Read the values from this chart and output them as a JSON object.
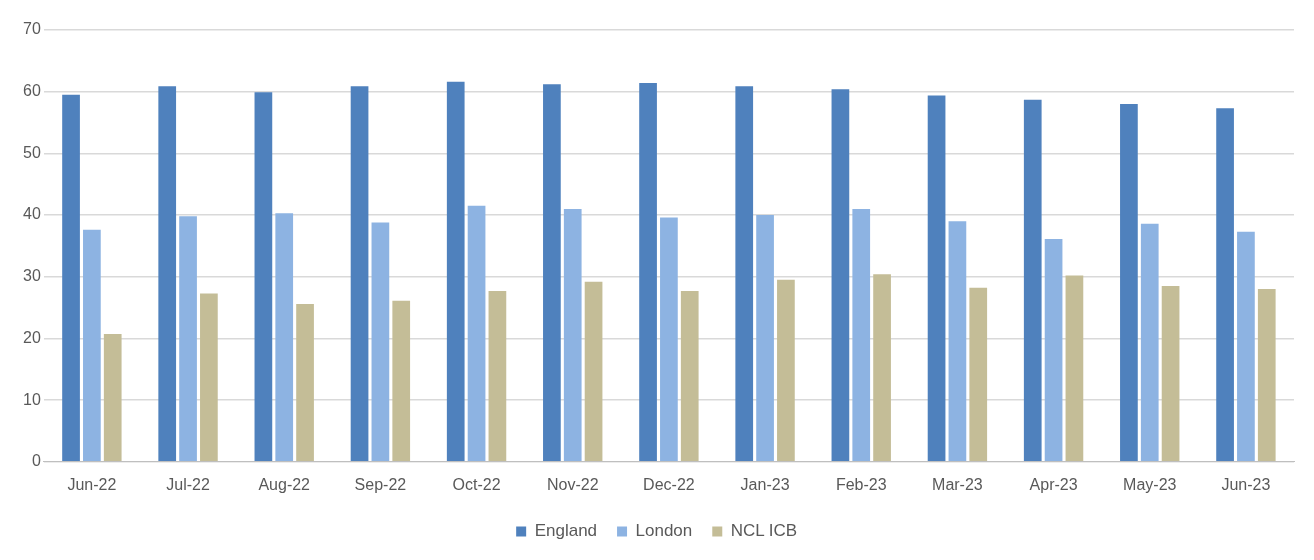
{
  "chart_data": {
    "type": "bar",
    "categories": [
      "Jun-22",
      "Jul-22",
      "Aug-22",
      "Sep-22",
      "Oct-22",
      "Nov-22",
      "Dec-22",
      "Jan-23",
      "Feb-23",
      "Mar-23",
      "Apr-23",
      "May-23",
      "Jun-23"
    ],
    "series": [
      {
        "name": "England",
        "color": "#4f81bd",
        "values": [
          59.5,
          60.9,
          59.9,
          60.9,
          61.6,
          61.2,
          61.4,
          60.9,
          60.4,
          59.4,
          58.7,
          58.0,
          57.3
        ]
      },
      {
        "name": "London",
        "color": "#8db3e2",
        "values": [
          37.6,
          39.8,
          40.3,
          38.8,
          41.5,
          41.0,
          39.6,
          40.0,
          41.0,
          39.0,
          36.1,
          38.6,
          37.3
        ]
      },
      {
        "name": "NCL ICB",
        "color": "#c4bd97",
        "values": [
          20.7,
          27.3,
          25.6,
          26.1,
          27.7,
          29.2,
          27.7,
          29.5,
          30.4,
          28.2,
          30.2,
          28.5,
          28.0
        ]
      }
    ],
    "ylim": [
      0,
      70
    ],
    "yticks": [
      0,
      10,
      20,
      30,
      40,
      50,
      60,
      70
    ],
    "grid": "y",
    "legend": "bottom"
  }
}
